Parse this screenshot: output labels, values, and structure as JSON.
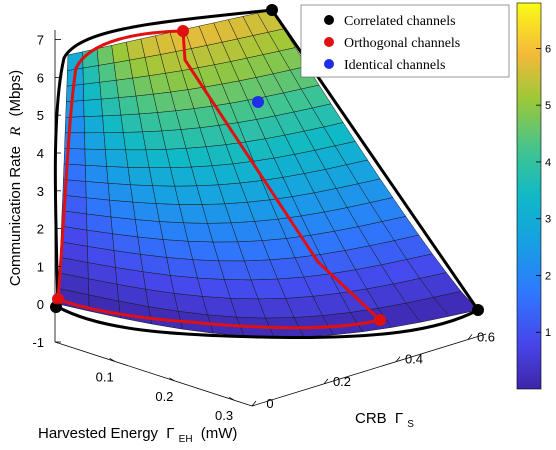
{
  "chart_data": {
    "type": "surface3d",
    "axes": {
      "x": {
        "label": "Harvested Energy",
        "symbol": "Γ",
        "subscript": "EH",
        "unit": "(mW)",
        "range": [
          0,
          0.33
        ],
        "ticks": [
          0.1,
          0.2,
          0.3
        ],
        "tick_labels": [
          "0.1",
          "0.2",
          "0.3"
        ]
      },
      "y": {
        "label": "CRB",
        "symbol": "Γ",
        "subscript": "S",
        "range": [
          0,
          0.65
        ],
        "ticks": [
          0,
          0.2,
          0.4,
          0.6
        ],
        "tick_labels": [
          "0",
          "0.2",
          "0.4",
          "0.6"
        ]
      },
      "z": {
        "label": "Communication Rate",
        "symbol": "R",
        "unit": "(Mbps)",
        "range": [
          -1,
          7.4
        ],
        "ticks": [
          -1,
          0,
          1,
          2,
          3,
          4,
          5,
          6,
          7
        ],
        "tick_labels": [
          "-1",
          "0",
          "1",
          "2",
          "3",
          "4",
          "5",
          "6",
          "7"
        ]
      }
    },
    "colorbar": {
      "range": [
        0,
        6.8
      ],
      "ticks": [
        1,
        2,
        3,
        4,
        5,
        6
      ],
      "tick_labels": [
        "1",
        "2",
        "3",
        "4",
        "5",
        "6"
      ]
    },
    "legend": {
      "placement": "top-right",
      "entries": [
        {
          "name": "Correlated channels",
          "color": "#000000",
          "marker": "circle"
        },
        {
          "name": "Orthogonal channels",
          "color": "#e01010",
          "marker": "circle"
        },
        {
          "name": "Identical channels",
          "color": "#1f2fe8",
          "marker": "circle"
        }
      ]
    },
    "colors": {
      "correlated": "#000000",
      "orthogonal": "#e01010",
      "identical": "#1f2fe8"
    }
  }
}
